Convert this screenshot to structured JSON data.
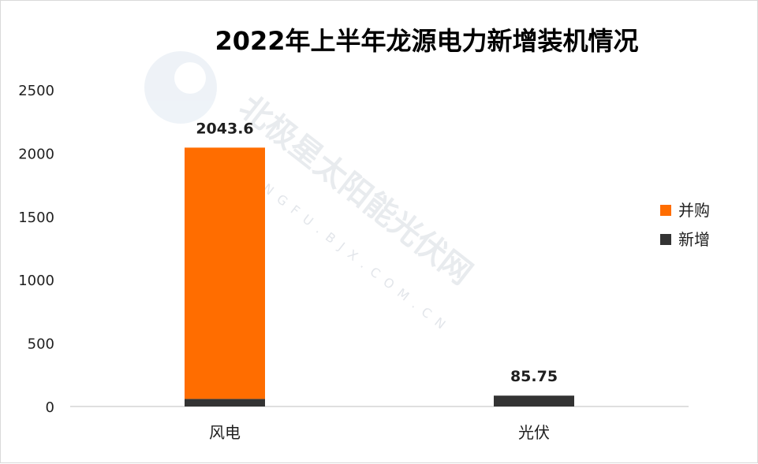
{
  "chart_data": {
    "type": "bar",
    "stacked": true,
    "title": "2022年上半年龙源电力新增装机情况",
    "xlabel": "",
    "ylabel": "",
    "categories": [
      "风电",
      "光伏"
    ],
    "ylim": [
      0,
      2500
    ],
    "yticks": [
      "0",
      "500",
      "1000",
      "1500",
      "2000",
      "2500"
    ],
    "series": [
      {
        "name": "新增",
        "color": "#333333",
        "values": [
          60,
          85.75
        ]
      },
      {
        "name": "并购",
        "color": "#FF6D00",
        "values": [
          1983.6,
          0
        ]
      }
    ],
    "data_labels": [
      "2043.6",
      "85.75"
    ],
    "legend": {
      "position": "right",
      "order": [
        "并购",
        "新增"
      ]
    },
    "grid": false
  },
  "watermark": {
    "brand": "北极星太阳能光伏网",
    "domain": "GUANGFU.BJX.COM.CN"
  }
}
